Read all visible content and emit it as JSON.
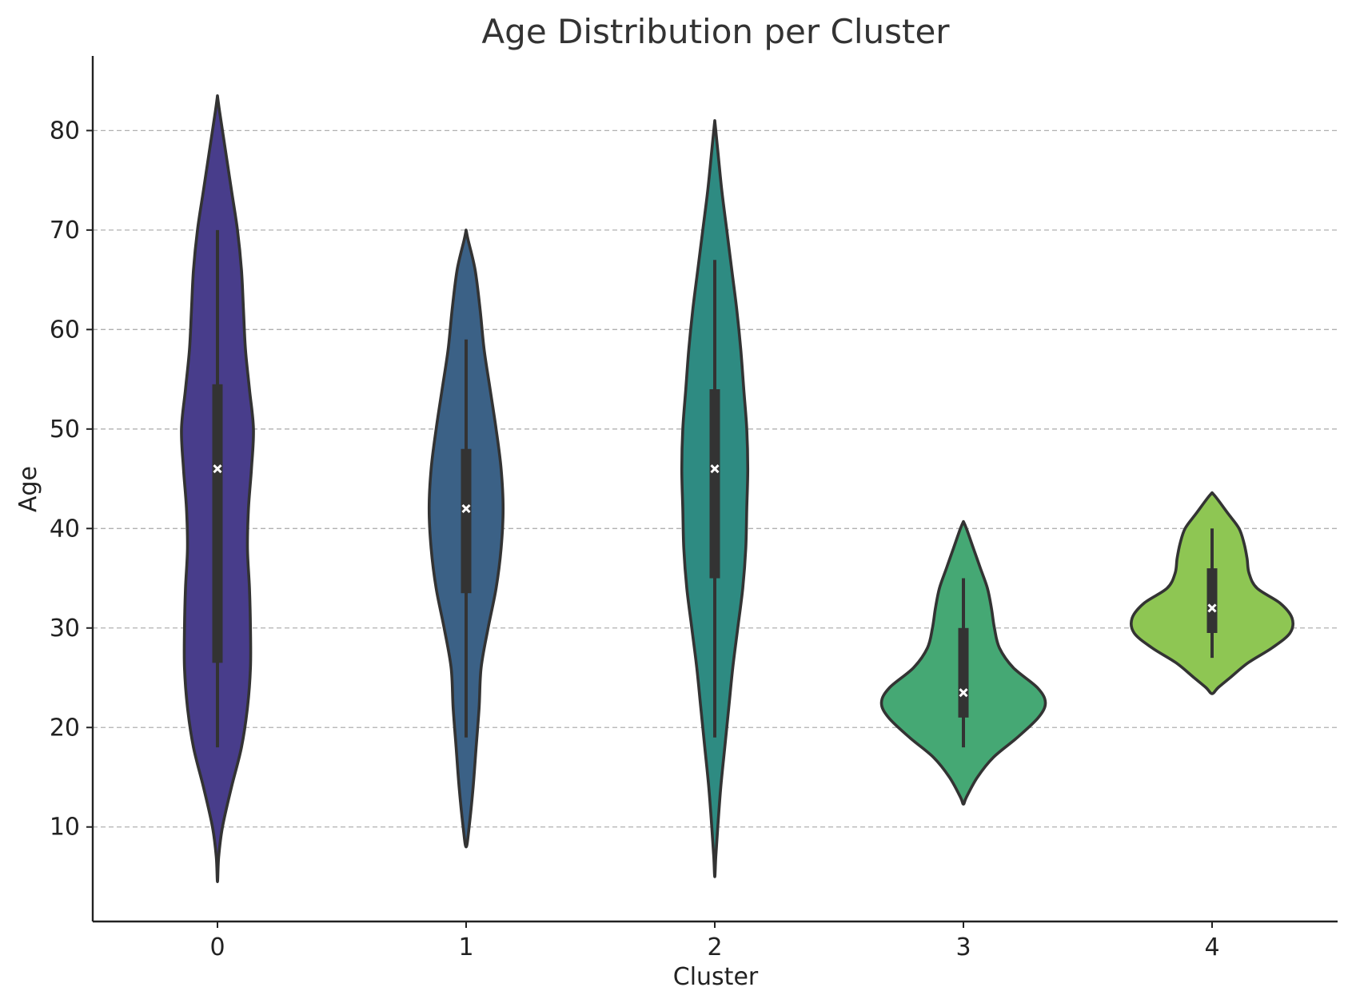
{
  "chart_data": {
    "type": "violin",
    "title": "Age Distribution per Cluster",
    "xlabel": "Cluster",
    "ylabel": "Age",
    "categories": [
      "0",
      "1",
      "2",
      "3",
      "4"
    ],
    "y_ticks": [
      10,
      20,
      30,
      40,
      50,
      60,
      70,
      80
    ],
    "ylim": [
      0.5,
      87.5
    ],
    "grid": "horizontal dashed",
    "series": [
      {
        "category": "0",
        "color": "#483d8b",
        "median": 46,
        "q1": 26.5,
        "q3": 54.5,
        "whisker_low": 18,
        "whisker_high": 70,
        "density": [
          [
            4.5,
            0
          ],
          [
            7,
            0.012
          ],
          [
            10,
            0.05
          ],
          [
            14,
            0.14
          ],
          [
            18,
            0.24
          ],
          [
            22,
            0.3
          ],
          [
            26,
            0.33
          ],
          [
            30,
            0.33
          ],
          [
            34,
            0.32
          ],
          [
            38,
            0.3
          ],
          [
            42,
            0.31
          ],
          [
            46,
            0.34
          ],
          [
            50,
            0.36
          ],
          [
            54,
            0.32
          ],
          [
            58,
            0.28
          ],
          [
            62,
            0.26
          ],
          [
            66,
            0.24
          ],
          [
            70,
            0.2
          ],
          [
            74,
            0.14
          ],
          [
            78,
            0.08
          ],
          [
            82,
            0.02
          ],
          [
            83.5,
            0
          ]
        ]
      },
      {
        "category": "1",
        "color": "#3b6186",
        "median": 42,
        "q1": 33.5,
        "q3": 48,
        "whisker_low": 19,
        "whisker_high": 59,
        "density": [
          [
            8,
            0
          ],
          [
            10,
            0.03
          ],
          [
            14,
            0.07
          ],
          [
            18,
            0.1
          ],
          [
            22,
            0.13
          ],
          [
            26,
            0.15
          ],
          [
            30,
            0.22
          ],
          [
            34,
            0.3
          ],
          [
            38,
            0.35
          ],
          [
            42,
            0.37
          ],
          [
            46,
            0.35
          ],
          [
            50,
            0.3
          ],
          [
            54,
            0.24
          ],
          [
            58,
            0.18
          ],
          [
            62,
            0.14
          ],
          [
            66,
            0.09
          ],
          [
            69,
            0.02
          ],
          [
            70,
            0
          ]
        ]
      },
      {
        "category": "2",
        "color": "#2e8b82",
        "median": 46,
        "q1": 35,
        "q3": 54,
        "whisker_low": 19,
        "whisker_high": 67,
        "density": [
          [
            5,
            0
          ],
          [
            7,
            0.01
          ],
          [
            10,
            0.03
          ],
          [
            14,
            0.06
          ],
          [
            18,
            0.1
          ],
          [
            22,
            0.14
          ],
          [
            26,
            0.18
          ],
          [
            30,
            0.23
          ],
          [
            34,
            0.28
          ],
          [
            38,
            0.31
          ],
          [
            42,
            0.32
          ],
          [
            46,
            0.33
          ],
          [
            50,
            0.32
          ],
          [
            54,
            0.29
          ],
          [
            58,
            0.26
          ],
          [
            62,
            0.22
          ],
          [
            66,
            0.17
          ],
          [
            70,
            0.12
          ],
          [
            74,
            0.07
          ],
          [
            78,
            0.03
          ],
          [
            81,
            0
          ]
        ]
      },
      {
        "category": "3",
        "color": "#45a874",
        "median": 23.5,
        "q1": 21,
        "q3": 30,
        "whisker_low": 18,
        "whisker_high": 35,
        "density": [
          [
            12.3,
            0
          ],
          [
            13,
            0.03
          ],
          [
            15,
            0.14
          ],
          [
            17,
            0.3
          ],
          [
            19,
            0.54
          ],
          [
            21,
            0.75
          ],
          [
            22.5,
            0.82
          ],
          [
            24,
            0.74
          ],
          [
            26,
            0.5
          ],
          [
            28,
            0.36
          ],
          [
            30,
            0.31
          ],
          [
            32,
            0.28
          ],
          [
            34,
            0.24
          ],
          [
            36,
            0.17
          ],
          [
            38,
            0.1
          ],
          [
            40,
            0.03
          ],
          [
            40.7,
            0
          ]
        ]
      },
      {
        "category": "4",
        "color": "#8ec653",
        "median": 32,
        "q1": 29.5,
        "q3": 36,
        "whisker_low": 27,
        "whisker_high": 40,
        "density": [
          [
            23.4,
            0
          ],
          [
            24,
            0.06
          ],
          [
            25,
            0.18
          ],
          [
            26.5,
            0.36
          ],
          [
            28,
            0.6
          ],
          [
            29.5,
            0.78
          ],
          [
            31,
            0.8
          ],
          [
            32.5,
            0.68
          ],
          [
            34,
            0.45
          ],
          [
            35.5,
            0.37
          ],
          [
            37,
            0.35
          ],
          [
            38.5,
            0.32
          ],
          [
            40,
            0.27
          ],
          [
            41.5,
            0.16
          ],
          [
            43,
            0.05
          ],
          [
            43.6,
            0
          ]
        ]
      }
    ]
  }
}
